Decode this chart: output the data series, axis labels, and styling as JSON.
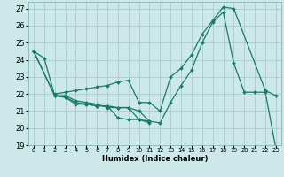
{
  "xlabel": "Humidex (Indice chaleur)",
  "background_color": "#cce8e8",
  "grid_color": "#aacccc",
  "line_color": "#1a7a6a",
  "xlim": [
    -0.5,
    23.5
  ],
  "ylim": [
    19,
    27.4
  ],
  "xticks": [
    0,
    1,
    2,
    3,
    4,
    5,
    6,
    7,
    8,
    9,
    10,
    11,
    12,
    13,
    14,
    15,
    16,
    17,
    18,
    19,
    20,
    21,
    22,
    23
  ],
  "yticks": [
    19,
    20,
    21,
    22,
    23,
    24,
    25,
    26,
    27
  ],
  "series": [
    {
      "x": [
        0,
        1,
        2,
        3,
        4,
        5,
        6,
        7,
        8,
        9,
        10,
        11
      ],
      "y": [
        24.5,
        24.1,
        21.9,
        21.8,
        21.4,
        21.4,
        21.3,
        21.3,
        20.6,
        20.5,
        20.5,
        20.3
      ]
    },
    {
      "x": [
        0,
        2,
        3,
        4,
        5,
        6,
        7,
        8,
        9,
        10,
        11
      ],
      "y": [
        24.5,
        21.9,
        21.9,
        21.6,
        21.5,
        21.4,
        21.2,
        21.2,
        21.2,
        20.5,
        20.4
      ]
    },
    {
      "x": [
        2,
        3,
        4,
        5,
        6,
        7,
        8,
        9,
        10,
        11,
        12,
        13,
        14,
        15,
        16,
        17,
        18,
        19,
        22,
        23
      ],
      "y": [
        22.0,
        22.1,
        22.2,
        22.3,
        22.4,
        22.5,
        22.7,
        22.8,
        21.5,
        21.5,
        21.0,
        23.0,
        23.5,
        24.3,
        25.5,
        26.3,
        27.1,
        27.0,
        22.2,
        21.9
      ]
    },
    {
      "x": [
        0,
        2,
        3,
        4,
        5,
        6,
        7,
        8,
        9,
        10,
        11,
        12,
        13,
        14,
        15,
        16,
        17,
        18,
        19,
        20,
        21,
        22,
        23
      ],
      "y": [
        24.5,
        21.9,
        21.8,
        21.5,
        21.4,
        21.3,
        21.3,
        21.2,
        21.2,
        21.0,
        20.4,
        20.3,
        21.5,
        22.5,
        23.4,
        25.0,
        26.2,
        26.8,
        23.8,
        22.1,
        22.1,
        22.1,
        18.8
      ]
    }
  ]
}
